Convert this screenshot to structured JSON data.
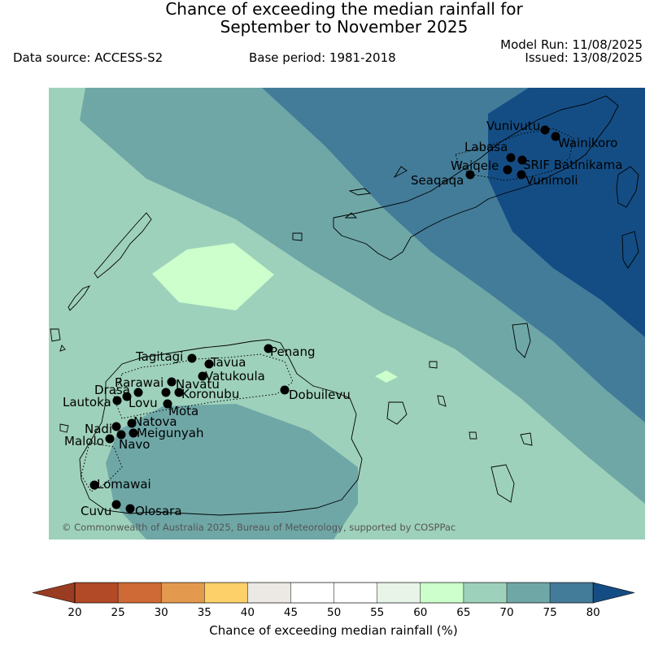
{
  "header": {
    "title_line1": "Chance of exceeding the median rainfall for",
    "title_line2": "September to November 2025",
    "data_source": "Data source: ACCESS-S2",
    "base_period": "Base period: 1981-2018",
    "model_run": "Model Run: 11/08/2025",
    "issued": "Issued: 13/08/2025"
  },
  "map": {
    "copyright": "© Commonwealth of Australia 2025, Bureau of Meteorology, supported by COSPPac",
    "stations": [
      {
        "name": "Vunivutu"
      },
      {
        "name": "Wainikoro"
      },
      {
        "name": "Labasa"
      },
      {
        "name": "Waiqele"
      },
      {
        "name": "SRIF Batinikama"
      },
      {
        "name": "Seaqaqa"
      },
      {
        "name": "Vunimoli"
      },
      {
        "name": "Tagitagi"
      },
      {
        "name": "Penang"
      },
      {
        "name": "Tavua"
      },
      {
        "name": "Rarawai"
      },
      {
        "name": "Vatukoula"
      },
      {
        "name": "Navatu"
      },
      {
        "name": "Drasa"
      },
      {
        "name": "Koronubu"
      },
      {
        "name": "Dobuilevu"
      },
      {
        "name": "Lautoka"
      },
      {
        "name": "Lovu"
      },
      {
        "name": "Mota"
      },
      {
        "name": "Natova"
      },
      {
        "name": "Nadi"
      },
      {
        "name": "Meigunyah"
      },
      {
        "name": "Malolo"
      },
      {
        "name": "Navo"
      },
      {
        "name": "Lomawai"
      },
      {
        "name": "Cuvu"
      },
      {
        "name": "Olosara"
      }
    ]
  },
  "legend": {
    "label": "Chance of exceeding median rainfall (%)",
    "ticks": [
      "20",
      "25",
      "30",
      "35",
      "40",
      "45",
      "50",
      "55",
      "60",
      "65",
      "70",
      "75",
      "80"
    ],
    "colors": [
      "#b34a27",
      "#cf6a36",
      "#e39a4e",
      "#fdd06a",
      "#ece9e4",
      "#ffffff",
      "#ffffff",
      "#e9f4e9",
      "#ccffcc",
      "#9ed1bb",
      "#6fa7a7",
      "#437c99"
    ],
    "under_color": "#9a3c22",
    "over_color": "#144d84"
  },
  "colors": {
    "c55_60": "#e9f4e9",
    "c60_65": "#ccffcc",
    "c65_70": "#9ed1bb",
    "c70_75": "#6fa7a7",
    "c75_80": "#437c99",
    "c80_plus": "#144d84"
  }
}
